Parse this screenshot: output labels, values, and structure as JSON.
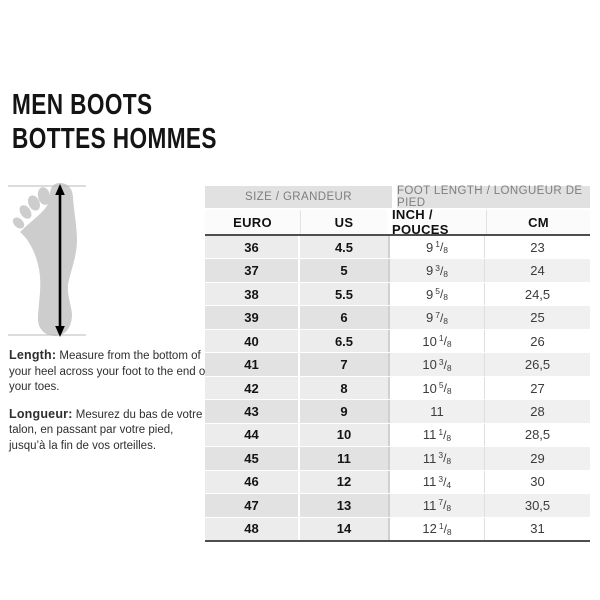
{
  "page": {
    "title_line1": "MEN BOOTS",
    "title_line2": "BOTTES HOMMES"
  },
  "illustration": {
    "name": "foot-length-measurement-diagram",
    "foot_color": "#cdcdcd",
    "guide_line_color": "#b9b9b9",
    "arrow_color": "#000000"
  },
  "instructions": {
    "length_label": "Length:",
    "length_text": " Measure from the bottom of your heel across your foot to the end of your toes.",
    "longueur_label": "Longueur:",
    "longueur_text": " Mesurez du bas de votre talon, en passant par votre pied, jusqu’à la fin de vos orteilles."
  },
  "table": {
    "group_headers": [
      {
        "label": "SIZE / GRANDEUR"
      },
      {
        "label": "FOOT LENGTH / LONGUEUR DE PIED"
      }
    ],
    "column_headers": [
      "EURO",
      "US",
      "INCH / POUCES",
      "CM"
    ],
    "colors": {
      "group_header_bg": "#e1e1e1",
      "group_header_text": "#7e7e7e",
      "dark_rule": "#4e4e4e",
      "left_light": "#ececec",
      "left_dark": "#e2e2e2",
      "right_light": "#ffffff",
      "right_dark": "#f0f0f0"
    },
    "rows": [
      {
        "euro": "36",
        "us": "4.5",
        "inch_whole": "9",
        "inch_num": "1",
        "inch_den": "8",
        "cm": "23"
      },
      {
        "euro": "37",
        "us": "5",
        "inch_whole": "9",
        "inch_num": "3",
        "inch_den": "8",
        "cm": "24"
      },
      {
        "euro": "38",
        "us": "5.5",
        "inch_whole": "9",
        "inch_num": "5",
        "inch_den": "8",
        "cm": "24,5"
      },
      {
        "euro": "39",
        "us": "6",
        "inch_whole": "9",
        "inch_num": "7",
        "inch_den": "8",
        "cm": "25"
      },
      {
        "euro": "40",
        "us": "6.5",
        "inch_whole": "10",
        "inch_num": "1",
        "inch_den": "8",
        "cm": "26"
      },
      {
        "euro": "41",
        "us": "7",
        "inch_whole": "10",
        "inch_num": "3",
        "inch_den": "8",
        "cm": "26,5"
      },
      {
        "euro": "42",
        "us": "8",
        "inch_whole": "10",
        "inch_num": "5",
        "inch_den": "8",
        "cm": "27"
      },
      {
        "euro": "43",
        "us": "9",
        "inch_whole": "11",
        "inch_num": "",
        "inch_den": "",
        "cm": "28"
      },
      {
        "euro": "44",
        "us": "10",
        "inch_whole": "11",
        "inch_num": "1",
        "inch_den": "8",
        "cm": "28,5"
      },
      {
        "euro": "45",
        "us": "11",
        "inch_whole": "11",
        "inch_num": "3",
        "inch_den": "8",
        "cm": "29"
      },
      {
        "euro": "46",
        "us": "12",
        "inch_whole": "11",
        "inch_num": "3",
        "inch_den": "4",
        "cm": "30"
      },
      {
        "euro": "47",
        "us": "13",
        "inch_whole": "11",
        "inch_num": "7",
        "inch_den": "8",
        "cm": "30,5"
      },
      {
        "euro": "48",
        "us": "14",
        "inch_whole": "12",
        "inch_num": "1",
        "inch_den": "8",
        "cm": "31"
      }
    ]
  }
}
